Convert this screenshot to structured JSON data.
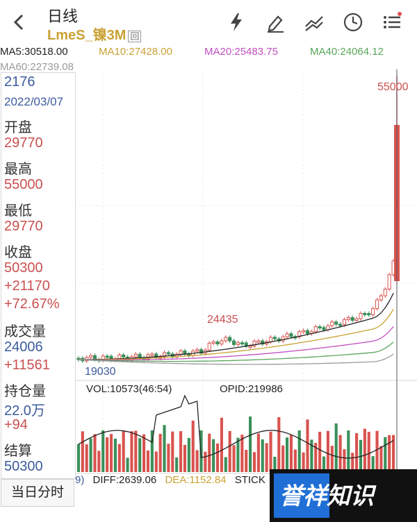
{
  "header": {
    "title": "日线",
    "symbol": "LmeS_镍3M",
    "symbol_tag": "回",
    "icons": [
      "lightning-icon",
      "pen-icon",
      "trend-lines-icon",
      "clock-icon",
      "menu-list-icon"
    ]
  },
  "ma": {
    "ma5": "MA5:30518.00",
    "ma10": "MA10:27428.00",
    "ma20": "MA20:25483.75",
    "ma40": "MA40:24064.12",
    "ma60": "MA60:22739.08"
  },
  "colors": {
    "ma5": "#222222",
    "ma10": "#c9a233",
    "ma20": "#c050c0",
    "ma40": "#5aa55a",
    "ma60": "#9a9a9a",
    "up": "#d9534f",
    "down": "#3a8f5a"
  },
  "info": {
    "date_number": "2176",
    "date": "2022/03/07",
    "open_label": "开盘",
    "open_value": "29770",
    "high_label": "最高",
    "high_value": "55000",
    "low_label": "最低",
    "low_value": "29770",
    "close_label": "收盘",
    "close_value": "50300",
    "change": "+21170",
    "change_pct": "+72.67%",
    "volume_label": "成交量",
    "volume_value": "24006",
    "volume_change": "+11561",
    "oi_label": "持仓量",
    "oi_value": "22.0万",
    "oi_change": "+94",
    "settle_label": "结算",
    "settle_value": "50300"
  },
  "chart_labels": {
    "high_marker": "55000",
    "mid_marker": "24435",
    "low_marker": "19030"
  },
  "volume": {
    "vol_label": "VOL:10573(46:54)",
    "opid_label": "OPID:219986"
  },
  "macd": {
    "prefix": "9)",
    "diff": "DIFF:2639.06",
    "dea": "DEA:1152.84",
    "stick": "STICK"
  },
  "today_button": "当日分时",
  "watermark": "誉祥知识"
}
